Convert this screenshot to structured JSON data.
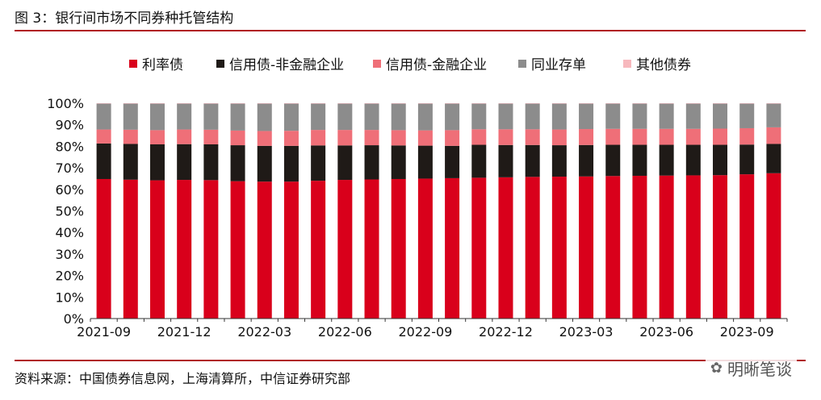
{
  "figure": {
    "title": "图 3：银行间市场不同券种托管结构",
    "source": "资料来源：中国债券信息网，上海清算所，中信证券研究部",
    "watermark": "明晰笔谈"
  },
  "colors": {
    "accent": "#b01923",
    "series": [
      "#d9001b",
      "#1f1a17",
      "#ef6f78",
      "#8c8c8c",
      "#f7b8bd"
    ]
  },
  "chart_data": {
    "type": "bar",
    "stacked": true,
    "title": "银行间市场不同券种托管结构",
    "xlabel": "",
    "ylabel": "",
    "ylim": [
      0,
      100
    ],
    "yticks": [
      "0%",
      "10%",
      "20%",
      "30%",
      "40%",
      "50%",
      "60%",
      "70%",
      "80%",
      "90%",
      "100%"
    ],
    "categories": [
      "2021-09",
      "2021-10",
      "2021-11",
      "2021-12",
      "2022-01",
      "2022-02",
      "2022-03",
      "2022-04",
      "2022-05",
      "2022-06",
      "2022-07",
      "2022-08",
      "2022-09",
      "2022-10",
      "2022-11",
      "2022-12",
      "2023-01",
      "2023-02",
      "2023-03",
      "2023-04",
      "2023-05",
      "2023-06",
      "2023-07",
      "2023-08",
      "2023-09",
      "2023-10"
    ],
    "xtick_labels": [
      "2021-09",
      "2021-12",
      "2022-03",
      "2022-06",
      "2022-09",
      "2022-12",
      "2023-03",
      "2023-06",
      "2023-09"
    ],
    "legend_position": "top",
    "series": [
      {
        "name": "利率债",
        "values": [
          64.8,
          64.5,
          64.2,
          64.4,
          64.3,
          63.8,
          63.6,
          63.6,
          64.0,
          64.4,
          64.6,
          64.8,
          65.0,
          65.2,
          65.4,
          65.6,
          65.8,
          65.9,
          66.0,
          66.2,
          66.3,
          66.4,
          66.5,
          66.6,
          67.0,
          67.5
        ]
      },
      {
        "name": "信用债-非金融企业",
        "values": [
          16.5,
          16.6,
          16.7,
          16.6,
          16.6,
          16.7,
          16.6,
          16.6,
          16.4,
          16.0,
          15.9,
          15.6,
          15.3,
          15.0,
          15.3,
          15.0,
          14.8,
          14.6,
          14.6,
          14.5,
          14.4,
          14.3,
          14.2,
          14.1,
          13.8,
          13.6
        ]
      },
      {
        "name": "信用债-金融企业",
        "values": [
          6.5,
          6.6,
          6.6,
          6.8,
          6.8,
          6.8,
          6.9,
          7.0,
          7.2,
          7.2,
          7.1,
          7.1,
          7.1,
          7.3,
          7.2,
          7.3,
          7.3,
          7.3,
          7.4,
          7.4,
          7.4,
          7.4,
          7.4,
          7.5,
          7.6,
          7.7
        ]
      },
      {
        "name": "同业存单",
        "values": [
          12.0,
          12.1,
          12.3,
          12.0,
          12.1,
          12.5,
          12.7,
          12.6,
          12.2,
          12.2,
          12.2,
          12.3,
          12.4,
          12.3,
          11.9,
          11.9,
          11.9,
          12.0,
          11.8,
          11.7,
          11.7,
          11.7,
          11.7,
          11.6,
          11.4,
          11.0
        ]
      },
      {
        "name": "其他债券",
        "values": [
          0.2,
          0.2,
          0.2,
          0.2,
          0.2,
          0.2,
          0.2,
          0.2,
          0.2,
          0.2,
          0.2,
          0.2,
          0.2,
          0.2,
          0.2,
          0.2,
          0.2,
          0.2,
          0.2,
          0.2,
          0.2,
          0.2,
          0.2,
          0.2,
          0.2,
          0.2
        ]
      }
    ]
  }
}
